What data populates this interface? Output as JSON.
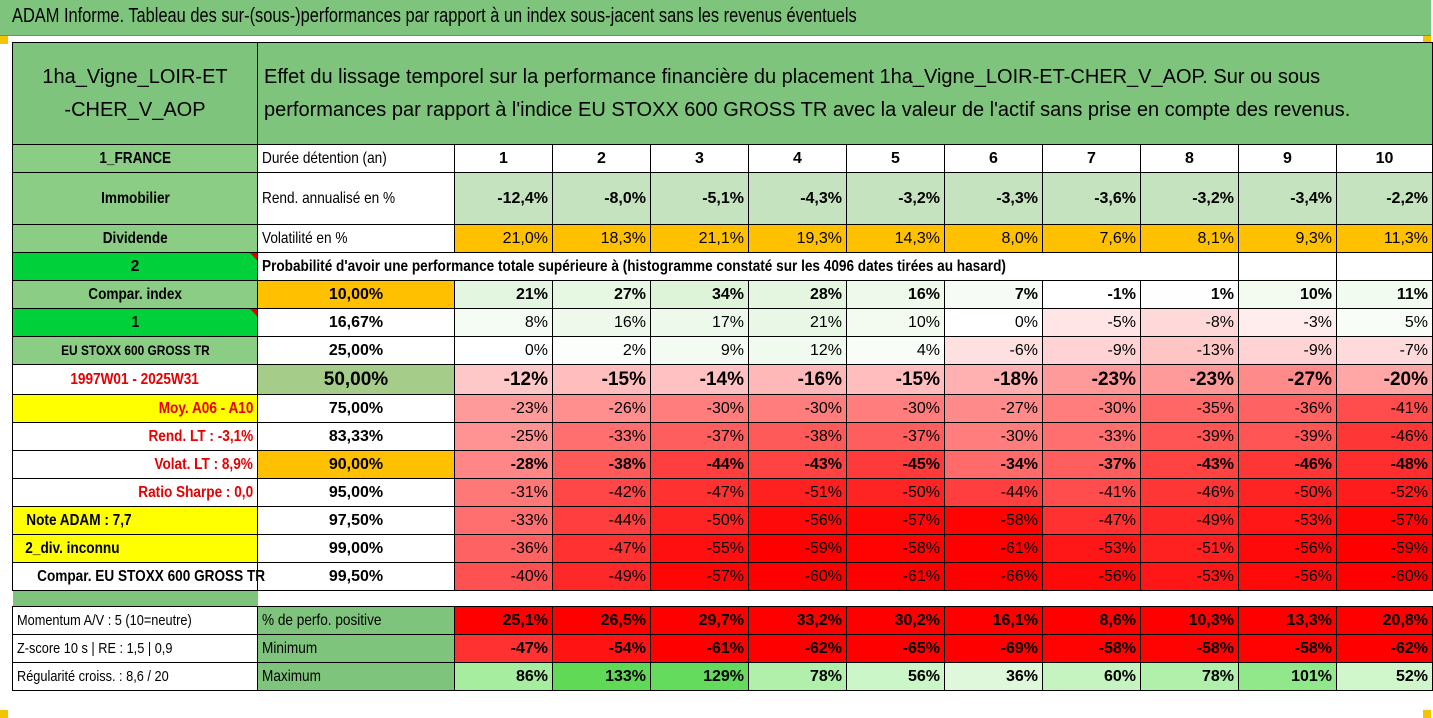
{
  "title": "ADAM Informe. Tableau des sur-(sous-)performances par rapport à un index sous-jacent sans les revenus éventuels",
  "header": {
    "asset_name": "1ha_Vigne_LOIR-ET-CHER_V_AOP",
    "description": "Effet du lissage temporel sur la performance financière du placement 1ha_Vigne_LOIR-ET-CHER_V_AOP. Sur ou sous performances par rapport à l'indice EU STOXX 600 GROSS TR avec la valeur de l'actif sans prise en compte des revenus."
  },
  "left_labels": {
    "country": "1_FRANCE",
    "category": "Immobilier",
    "dividend": "Dividende",
    "num_2": "2",
    "compar_index": "Compar. index",
    "num_1": "1",
    "index_name": "EU STOXX 600 GROSS TR",
    "period": "1997W01 - 2025W31",
    "moy": "Moy. A06 - A10",
    "rend_lt": "Rend. LT :   -3,1%",
    "volat_lt": "Volat. LT :   8,9%",
    "ratio_sharpe": "Ratio Sharpe :   0,0",
    "note_adam": "Note ADAM : 7,7",
    "div_inconnu": "2_div. inconnu",
    "compar_full": "Compar. EU STOXX 600 GROSS TR",
    "momentum": "Momentum A/V : 5 (10=neutre)",
    "zscore": "Z-score 10 s  | RE : 1,5  | 0,9",
    "regularite": "Régularité croiss. : 8,6 / 20"
  },
  "row_labels": {
    "duree": "Durée détention (an)",
    "rend": "Rend. annualisé en %",
    "volat": "Volatilité en %",
    "probabilite": "Probabilité d'avoir une performance totale supérieure à (histogramme constaté sur les 4096 dates tirées au hasard)",
    "perf_positive": "% de perfo. positive",
    "minimum": "Minimum",
    "maximum": "Maximum"
  },
  "years": [
    "1",
    "2",
    "3",
    "4",
    "5",
    "6",
    "7",
    "8",
    "9",
    "10"
  ],
  "rend_values": [
    "-12,4%",
    "-8,0%",
    "-5,1%",
    "-4,3%",
    "-3,2%",
    "-3,3%",
    "-3,6%",
    "-3,2%",
    "-3,4%",
    "-2,2%"
  ],
  "volat_values": [
    "21,0%",
    "18,3%",
    "21,1%",
    "19,3%",
    "14,3%",
    "8,0%",
    "7,6%",
    "8,1%",
    "9,3%",
    "11,3%"
  ],
  "percentile_rows": [
    {
      "pct": "10,00%",
      "values": [
        "21%",
        "27%",
        "34%",
        "28%",
        "16%",
        "7%",
        "-1%",
        "1%",
        "10%",
        "11%"
      ],
      "colors": [
        "#e3f6df",
        "#e6f7e2",
        "#def4d9",
        "#e4f6e0",
        "#eef9ec",
        "#f6fcf5",
        "#ffffff",
        "#fdfefd",
        "#f3fbf1",
        "#f2fbf0"
      ]
    },
    {
      "pct": "16,67%",
      "values": [
        "8%",
        "16%",
        "17%",
        "21%",
        "10%",
        "0%",
        "-5%",
        "-8%",
        "-3%",
        "5%"
      ],
      "colors": [
        "#f5fcf4",
        "#eef9ec",
        "#edf9eb",
        "#e9f8e6",
        "#f3fbf1",
        "#ffffff",
        "#ffe5e5",
        "#ffd9d9",
        "#ffeded",
        "#f8fdf7"
      ]
    },
    {
      "pct": "25,00%",
      "values": [
        "0%",
        "2%",
        "9%",
        "12%",
        "4%",
        "-6%",
        "-9%",
        "-13%",
        "-9%",
        "-7%"
      ],
      "colors": [
        "#ffffff",
        "#fcfefc",
        "#f4fbf3",
        "#f1faef",
        "#f9fdf8",
        "#ffe0e0",
        "#ffd3d3",
        "#ffc4c4",
        "#ffd3d3",
        "#ffdada"
      ]
    },
    {
      "pct": "50,00%",
      "values": [
        "-12%",
        "-15%",
        "-14%",
        "-16%",
        "-15%",
        "-18%",
        "-23%",
        "-23%",
        "-27%",
        "-20%"
      ],
      "colors": [
        "#ffc8c8",
        "#ffbdbd",
        "#ffc1c1",
        "#ffb8b8",
        "#ffbdbd",
        "#ffb0b0",
        "#ff9a9a",
        "#ff9a9a",
        "#ff8a8a",
        "#ffa6a6"
      ]
    },
    {
      "pct": "75,00%",
      "values": [
        "-23%",
        "-26%",
        "-30%",
        "-30%",
        "-30%",
        "-27%",
        "-30%",
        "-35%",
        "-36%",
        "-41%"
      ],
      "colors": [
        "#ff9a9a",
        "#ff8e8e",
        "#ff7d7d",
        "#ff7d7d",
        "#ff7d7d",
        "#ff8a8a",
        "#ff7d7d",
        "#ff6666",
        "#ff6262",
        "#ff4c4c"
      ]
    },
    {
      "pct": "83,33%",
      "values": [
        "-25%",
        "-33%",
        "-37%",
        "-38%",
        "-37%",
        "-30%",
        "-33%",
        "-39%",
        "-39%",
        "-46%"
      ],
      "colors": [
        "#ff9292",
        "#ff6f6f",
        "#ff5e5e",
        "#ff5a5a",
        "#ff5e5e",
        "#ff7d7d",
        "#ff6f6f",
        "#ff5555",
        "#ff5555",
        "#ff3636"
      ]
    },
    {
      "pct": "90,00%",
      "values": [
        "-28%",
        "-38%",
        "-44%",
        "-43%",
        "-45%",
        "-34%",
        "-37%",
        "-43%",
        "-46%",
        "-48%"
      ],
      "colors": [
        "#ff8686",
        "#ff5a5a",
        "#ff3f3f",
        "#ff4343",
        "#ff3a3a",
        "#ff6a6a",
        "#ff5e5e",
        "#ff4343",
        "#ff3636",
        "#ff2d2d"
      ]
    },
    {
      "pct": "95,00%",
      "values": [
        "-31%",
        "-42%",
        "-47%",
        "-51%",
        "-50%",
        "-44%",
        "-41%",
        "-46%",
        "-50%",
        "-52%"
      ],
      "colors": [
        "#ff7878",
        "#ff4747",
        "#ff3131",
        "#ff2020",
        "#ff2424",
        "#ff3f3f",
        "#ff4c4c",
        "#ff3636",
        "#ff2424",
        "#ff1c1c"
      ]
    },
    {
      "pct": "97,50%",
      "values": [
        "-33%",
        "-44%",
        "-50%",
        "-56%",
        "-57%",
        "-58%",
        "-47%",
        "-49%",
        "-53%",
        "-57%"
      ],
      "colors": [
        "#ff6f6f",
        "#ff3f3f",
        "#ff2424",
        "#ff0a0a",
        "#ff0606",
        "#ff0202",
        "#ff3131",
        "#ff2828",
        "#ff1717",
        "#ff0606"
      ]
    },
    {
      "pct": "99,00%",
      "values": [
        "-36%",
        "-47%",
        "-55%",
        "-59%",
        "-58%",
        "-61%",
        "-53%",
        "-51%",
        "-56%",
        "-59%"
      ],
      "colors": [
        "#ff6262",
        "#ff3131",
        "#ff0f0f",
        "#ff0000",
        "#ff0202",
        "#ff0000",
        "#ff1717",
        "#ff2020",
        "#ff0a0a",
        "#ff0000"
      ]
    },
    {
      "pct": "99,50%",
      "values": [
        "-40%",
        "-49%",
        "-57%",
        "-60%",
        "-61%",
        "-66%",
        "-56%",
        "-53%",
        "-56%",
        "-60%"
      ],
      "colors": [
        "#ff5151",
        "#ff2828",
        "#ff0606",
        "#ff0000",
        "#ff0000",
        "#ff0000",
        "#ff0a0a",
        "#ff1717",
        "#ff0a0a",
        "#ff0000"
      ]
    }
  ],
  "perf_positive_values": [
    "25,1%",
    "26,5%",
    "29,7%",
    "33,2%",
    "30,2%",
    "16,1%",
    "8,6%",
    "10,3%",
    "13,3%",
    "20,8%"
  ],
  "minimum_values": [
    "-47%",
    "-54%",
    "-61%",
    "-62%",
    "-65%",
    "-69%",
    "-58%",
    "-58%",
    "-58%",
    "-62%"
  ],
  "minimum_colors": [
    "#ff3131",
    "#ff1313",
    "#ff0000",
    "#ff0000",
    "#ff0000",
    "#ff0000",
    "#ff0202",
    "#ff0202",
    "#ff0202",
    "#ff0000"
  ],
  "maximum_values": [
    "86%",
    "133%",
    "129%",
    "78%",
    "56%",
    "36%",
    "60%",
    "78%",
    "101%",
    "52%"
  ],
  "maximum_colors": [
    "#a6eda0",
    "#60d957",
    "#65db5d",
    "#b0f0aa",
    "#cbf6c7",
    "#dff8dc",
    "#c5f4c1",
    "#b0f0aa",
    "#91e88a",
    "#d0f6cc"
  ],
  "colors": {
    "title_bg": "#7fc47c",
    "header_green": "#7fc47c",
    "rend_bg": "#c6e3bf",
    "volat_bg": "#ffc000",
    "perf_red": "#ff0000",
    "highlight_yellow": "#ffff00",
    "bright_green": "#00d13b",
    "accent_red_text": "#e60000"
  }
}
